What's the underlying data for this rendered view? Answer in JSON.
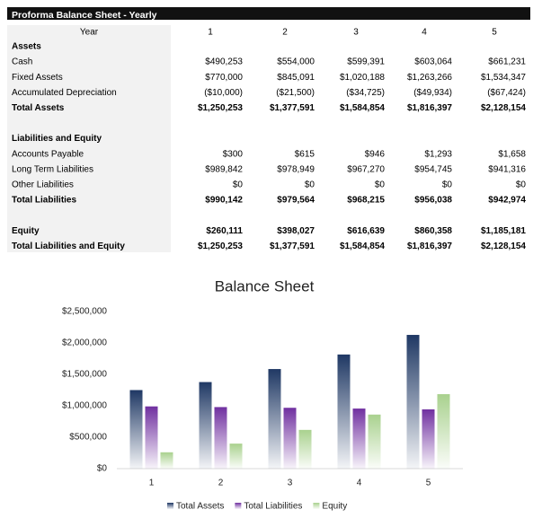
{
  "table": {
    "title": "Proforma Balance Sheet - Yearly",
    "header": [
      "Year",
      "1",
      "2",
      "3",
      "4",
      "5"
    ],
    "sections": [
      {
        "rows": [
          {
            "cells": [
              "Assets"
            ],
            "bold": true
          },
          {
            "cells": [
              "Cash",
              "$490,253",
              "$554,000",
              "$599,391",
              "$603,064",
              "$661,231"
            ]
          },
          {
            "cells": [
              "Fixed Assets",
              "$770,000",
              "$845,091",
              "$1,020,188",
              "$1,263,266",
              "$1,534,347"
            ]
          },
          {
            "cells": [
              "Accumulated Depreciation",
              "($10,000)",
              "($21,500)",
              "($34,725)",
              "($49,934)",
              "($67,424)"
            ],
            "color": "#ff0000"
          },
          {
            "cells": [
              "Total Assets",
              "$1,250,253",
              "$1,377,591",
              "$1,584,854",
              "$1,816,397",
              "$2,128,154"
            ],
            "bold": true
          }
        ]
      },
      {
        "rows": [
          {
            "cells": [
              "Liabilities and Equity"
            ],
            "bold": true
          },
          {
            "cells": [
              "Accounts Payable",
              "$300",
              "$615",
              "$946",
              "$1,293",
              "$1,658"
            ]
          },
          {
            "cells": [
              "Long Term Liabilities",
              "$989,842",
              "$978,949",
              "$967,270",
              "$954,745",
              "$941,316"
            ]
          },
          {
            "cells": [
              "Other Liabilities",
              "$0",
              "$0",
              "$0",
              "$0",
              "$0"
            ]
          },
          {
            "cells": [
              "Total Liabilities",
              "$990,142",
              "$979,564",
              "$968,215",
              "$956,038",
              "$942,974"
            ],
            "bold": true
          }
        ]
      },
      {
        "rows": [
          {
            "cells": [
              "Equity",
              "$260,111",
              "$398,027",
              "$616,639",
              "$860,358",
              "$1,185,181"
            ],
            "bold": true
          },
          {
            "cells": [
              "Total Liabilities and Equity",
              "$1,250,253",
              "$1,377,591",
              "$1,584,854",
              "$1,816,397",
              "$2,128,154"
            ],
            "bold": true
          }
        ]
      }
    ]
  },
  "chart_data": {
    "type": "bar",
    "title": "Balance Sheet",
    "categories": [
      "1",
      "2",
      "3",
      "4",
      "5"
    ],
    "series": [
      {
        "name": "Total Assets",
        "color": "#1f3864",
        "values": [
          1250253,
          1377591,
          1584854,
          1816397,
          2128154
        ]
      },
      {
        "name": "Total Liabilities",
        "color": "#7030a0",
        "values": [
          990142,
          979564,
          968215,
          956038,
          942974
        ]
      },
      {
        "name": "Equity",
        "color": "#a9d18e",
        "values": [
          260111,
          398027,
          616639,
          860358,
          1185181
        ]
      }
    ],
    "ylim": [
      0,
      2500000
    ],
    "yticks": [
      {
        "value": 0,
        "label": "$0"
      },
      {
        "value": 500000,
        "label": "$500,000"
      },
      {
        "value": 1000000,
        "label": "$1,000,000"
      },
      {
        "value": 1500000,
        "label": "$1,500,000"
      },
      {
        "value": 2000000,
        "label": "$2,000,000"
      },
      {
        "value": 2500000,
        "label": "$2,500,000"
      }
    ],
    "legend": "bottom"
  }
}
